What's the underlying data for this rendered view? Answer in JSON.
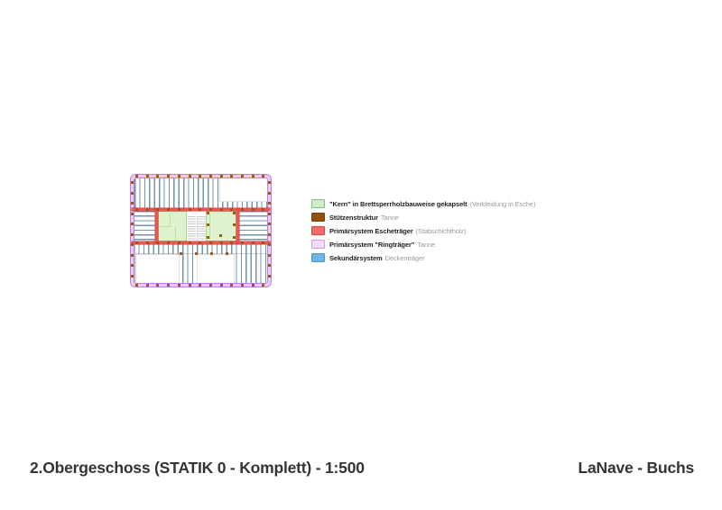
{
  "page": {
    "title": "2.Obergeschoss (STATIK 0 - Komplett) - 1:500",
    "project": "LaNave - Buchs"
  },
  "legend": {
    "items": [
      {
        "name": "kern",
        "label": "\"Kern\" in Brettsperrholzbauweise gekapselt",
        "suffix": "(Verkleidung in Esche)",
        "fill": "#cdeec6",
        "border": "#7fc277"
      },
      {
        "name": "stuetzenstruktur",
        "label": "Stützenstruktur",
        "suffix": "Tanne",
        "fill": "#94500e",
        "border": "#7a3f08"
      },
      {
        "name": "primaersystem-eschetraeger",
        "label": "Primärsystem Escheträger",
        "suffix": "(Stabschichtholz)",
        "fill": "#f46a6a",
        "border": "#d94040"
      },
      {
        "name": "primaersystem-ringtraeger",
        "label": "Primärsystem \"Ringträger\"",
        "suffix": "Tanne",
        "fill": "#f2dcf7",
        "border": "#cf9ade"
      },
      {
        "name": "sekundaersystem",
        "label": "Sekundärsystem",
        "suffix": "Deckenträger",
        "fill": "#6fb5e3",
        "border": "#4f91c4"
      }
    ]
  },
  "plan": {
    "colors": {
      "ring_fill": "#ecc9f2",
      "ring_edge": "#bb80d5",
      "joist": "#6f95ad",
      "red": "#ee5252",
      "red_edge": "#c63b3b",
      "core_fill": "#ddf2cd",
      "core_edge": "#a9d78f",
      "core_wall": "#bfe2a8",
      "column": "#9a5616",
      "stair": "#cccccc",
      "void_edge": "#e2e2e2"
    }
  }
}
